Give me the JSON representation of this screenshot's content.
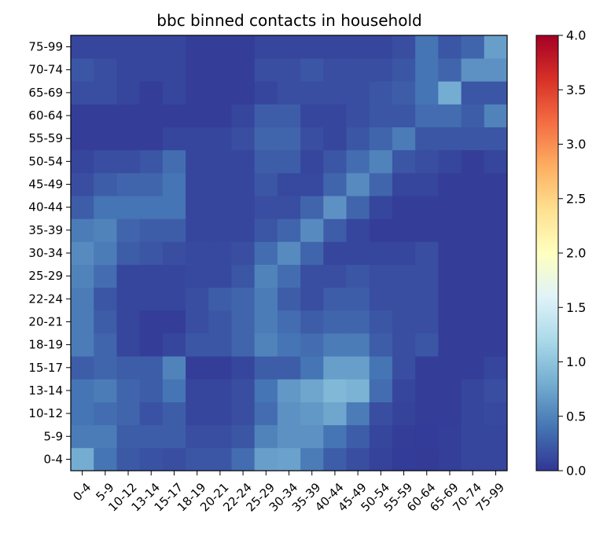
{
  "chart_data": {
    "type": "heatmap",
    "title": "bbc binned contacts in household",
    "xlabel": "",
    "ylabel": "",
    "x_categories": [
      "0-4",
      "5-9",
      "10-12",
      "13-14",
      "15-17",
      "18-19",
      "20-21",
      "22-24",
      "25-29",
      "30-34",
      "35-39",
      "40-44",
      "45-49",
      "50-54",
      "55-59",
      "60-64",
      "65-69",
      "70-74",
      "75-99"
    ],
    "y_categories": [
      "0-4",
      "5-9",
      "10-12",
      "13-14",
      "15-17",
      "18-19",
      "20-21",
      "22-24",
      "25-29",
      "30-34",
      "35-39",
      "40-44",
      "45-49",
      "50-54",
      "55-59",
      "60-64",
      "65-69",
      "70-74",
      "75-99"
    ],
    "colorbar": {
      "colormap": "RdYlBu_r",
      "range": [
        0.0,
        4.0
      ],
      "ticks": [
        "0.0",
        "0.5",
        "1.0",
        "1.5",
        "2.0",
        "2.5",
        "3.0",
        "3.5",
        "4.0"
      ]
    },
    "values_note_rows_bottom_to_top": "row 0 = y '0-4' (bottom), columns follow x_categories",
    "values": [
      [
        0.8,
        0.4,
        0.22,
        0.18,
        0.15,
        0.2,
        0.2,
        0.35,
        0.7,
        0.72,
        0.45,
        0.25,
        0.15,
        0.08,
        0.04,
        0.03,
        0.06,
        0.1,
        0.1
      ],
      [
        0.45,
        0.45,
        0.25,
        0.25,
        0.25,
        0.15,
        0.15,
        0.2,
        0.5,
        0.6,
        0.6,
        0.4,
        0.25,
        0.1,
        0.05,
        0.04,
        0.06,
        0.1,
        0.1
      ],
      [
        0.4,
        0.35,
        0.3,
        0.18,
        0.25,
        0.1,
        0.1,
        0.15,
        0.35,
        0.6,
        0.65,
        0.75,
        0.45,
        0.15,
        0.08,
        0.05,
        0.05,
        0.1,
        0.12
      ],
      [
        0.4,
        0.45,
        0.3,
        0.25,
        0.4,
        0.1,
        0.1,
        0.15,
        0.4,
        0.65,
        0.75,
        0.9,
        0.85,
        0.35,
        0.1,
        0.05,
        0.05,
        0.1,
        0.15
      ],
      [
        0.25,
        0.3,
        0.25,
        0.25,
        0.5,
        0.05,
        0.05,
        0.1,
        0.25,
        0.25,
        0.4,
        0.7,
        0.7,
        0.4,
        0.15,
        0.05,
        0.05,
        0.05,
        0.1
      ],
      [
        0.45,
        0.3,
        0.1,
        0.05,
        0.1,
        0.2,
        0.2,
        0.3,
        0.5,
        0.4,
        0.35,
        0.45,
        0.45,
        0.25,
        0.15,
        0.2,
        0.05,
        0.05,
        0.05
      ],
      [
        0.45,
        0.25,
        0.1,
        0.05,
        0.05,
        0.15,
        0.2,
        0.3,
        0.45,
        0.35,
        0.25,
        0.3,
        0.3,
        0.2,
        0.15,
        0.15,
        0.05,
        0.05,
        0.05
      ],
      [
        0.45,
        0.2,
        0.1,
        0.1,
        0.1,
        0.15,
        0.25,
        0.3,
        0.45,
        0.25,
        0.15,
        0.25,
        0.25,
        0.15,
        0.15,
        0.15,
        0.05,
        0.05,
        0.05
      ],
      [
        0.5,
        0.35,
        0.1,
        0.1,
        0.1,
        0.12,
        0.12,
        0.2,
        0.5,
        0.35,
        0.15,
        0.15,
        0.2,
        0.15,
        0.15,
        0.15,
        0.05,
        0.05,
        0.05
      ],
      [
        0.55,
        0.45,
        0.25,
        0.2,
        0.15,
        0.12,
        0.12,
        0.15,
        0.35,
        0.55,
        0.3,
        0.1,
        0.1,
        0.1,
        0.1,
        0.15,
        0.05,
        0.05,
        0.05
      ],
      [
        0.45,
        0.5,
        0.3,
        0.25,
        0.25,
        0.1,
        0.1,
        0.1,
        0.2,
        0.3,
        0.55,
        0.25,
        0.1,
        0.05,
        0.05,
        0.05,
        0.05,
        0.05,
        0.05
      ],
      [
        0.25,
        0.4,
        0.4,
        0.4,
        0.4,
        0.1,
        0.1,
        0.1,
        0.15,
        0.15,
        0.3,
        0.6,
        0.3,
        0.1,
        0.05,
        0.05,
        0.05,
        0.05,
        0.05
      ],
      [
        0.15,
        0.25,
        0.3,
        0.3,
        0.4,
        0.1,
        0.1,
        0.1,
        0.2,
        0.12,
        0.12,
        0.3,
        0.55,
        0.3,
        0.1,
        0.1,
        0.05,
        0.05,
        0.05
      ],
      [
        0.1,
        0.15,
        0.15,
        0.2,
        0.35,
        0.1,
        0.1,
        0.1,
        0.25,
        0.25,
        0.1,
        0.2,
        0.35,
        0.5,
        0.2,
        0.15,
        0.1,
        0.05,
        0.1
      ],
      [
        0.05,
        0.05,
        0.05,
        0.05,
        0.1,
        0.1,
        0.1,
        0.15,
        0.3,
        0.3,
        0.15,
        0.1,
        0.2,
        0.3,
        0.45,
        0.2,
        0.2,
        0.2,
        0.2
      ],
      [
        0.05,
        0.05,
        0.05,
        0.05,
        0.05,
        0.05,
        0.05,
        0.1,
        0.25,
        0.25,
        0.1,
        0.1,
        0.15,
        0.2,
        0.2,
        0.35,
        0.35,
        0.25,
        0.5
      ],
      [
        0.15,
        0.15,
        0.1,
        0.05,
        0.1,
        0.05,
        0.05,
        0.05,
        0.1,
        0.15,
        0.15,
        0.15,
        0.15,
        0.2,
        0.25,
        0.4,
        0.8,
        0.2,
        0.2
      ],
      [
        0.2,
        0.15,
        0.1,
        0.1,
        0.1,
        0.05,
        0.05,
        0.05,
        0.15,
        0.15,
        0.2,
        0.15,
        0.15,
        0.15,
        0.2,
        0.4,
        0.3,
        0.6,
        0.6
      ],
      [
        0.1,
        0.1,
        0.1,
        0.1,
        0.1,
        0.05,
        0.05,
        0.05,
        0.1,
        0.1,
        0.1,
        0.1,
        0.1,
        0.1,
        0.15,
        0.4,
        0.2,
        0.3,
        0.7
      ]
    ]
  }
}
